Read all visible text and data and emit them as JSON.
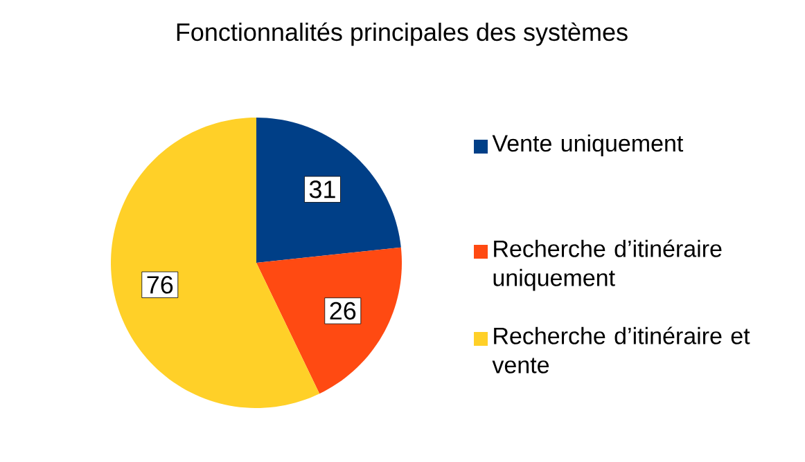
{
  "chart_data": {
    "type": "pie",
    "title": "Fonctionnalités principales des systèmes",
    "categories": [
      "Vente uniquement",
      "Recherche d’itinéraire uniquement",
      "Recherche d’itinéraire et vente"
    ],
    "values": [
      31,
      26,
      76
    ],
    "colors": [
      "#003f87",
      "#ff4a12",
      "#ffd028"
    ],
    "data_labels": true,
    "legend": "right"
  }
}
